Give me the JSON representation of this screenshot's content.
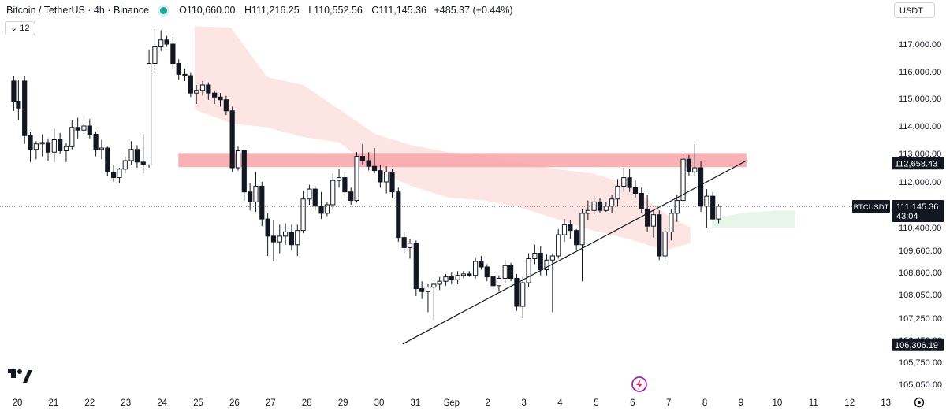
{
  "header": {
    "symbol": "Bitcoin / TetherUS · 4h · Binance",
    "open_label": "O",
    "open": "110,660.00",
    "high_label": "H",
    "high": "111,216.25",
    "low_label": "L",
    "low": "110,552.56",
    "close_label": "C",
    "close": "111,145.36",
    "change": "+485.37 (+0.44%)",
    "indicator_count": "12",
    "currency": "USDT"
  },
  "colors": {
    "up": "#131722",
    "down": "#131722",
    "resistance": "#f7a5a9",
    "cloud_bear": "#fde0de",
    "cloud_bull": "#e3f4e5",
    "axis_text": "#131722"
  },
  "chart_data": {
    "type": "candlestick",
    "symbol": "BTCUSDT",
    "interval": "4h",
    "y_axis": {
      "side": "right",
      "range": [
        104800,
        118000
      ],
      "ticks": [
        117000,
        116000,
        115000,
        114000,
        113000,
        112000,
        110400,
        109600,
        108800,
        108050,
        107250,
        106450,
        105750,
        105050
      ],
      "tick_labels": [
        "117,000.00",
        "116,000.00",
        "115,000.00",
        "114,000.00",
        "113,000.00",
        "112,000.00",
        "110,400.00",
        "109,600.00",
        "108,800.00",
        "108,050.00",
        "107,250.00",
        "106,450.00",
        "105,750.00",
        "105,050.00"
      ]
    },
    "x_axis": {
      "labels": [
        "20",
        "21",
        "22",
        "23",
        "24",
        "25",
        "26",
        "27",
        "28",
        "29",
        "30",
        "31",
        "Sep",
        "2",
        "3",
        "4",
        "5",
        "6",
        "7",
        "8",
        "9",
        "10",
        "11",
        "12",
        "13"
      ]
    },
    "price_labels": [
      {
        "text": "112,658.43",
        "value": 112658.43
      },
      {
        "text": "BTCUSDT",
        "value": 111145.36
      },
      {
        "text": "111,145.36",
        "value": 111145.36
      },
      {
        "text": "43:04",
        "value": 111145.36
      },
      {
        "text": "106,306.19",
        "value": 106306.19
      }
    ],
    "current_price": 111145.36,
    "resistance_zone": {
      "from_day": 24.45,
      "to_day": 40.15,
      "low": 112520,
      "high": 113020
    },
    "trendline": {
      "start": [
        30.65,
        106330
      ],
      "end": [
        40.15,
        112750
      ]
    },
    "ichimoku_cloud": {
      "bear": [
        [
          24.9,
          117650,
          114600
        ],
        [
          25.9,
          117600,
          114100
        ],
        [
          26.9,
          115800,
          113950
        ],
        [
          27.9,
          115500,
          113600
        ],
        [
          28.9,
          114600,
          113400
        ],
        [
          29.9,
          113700,
          112400
        ],
        [
          30.9,
          113300,
          111850
        ],
        [
          31.9,
          113050,
          111450
        ],
        [
          32.9,
          112950,
          111350
        ],
        [
          33.9,
          112700,
          111100
        ],
        [
          34.9,
          112450,
          110700
        ],
        [
          35.9,
          112300,
          110300
        ],
        [
          36.9,
          111900,
          110000
        ],
        [
          37.9,
          110900,
          109600
        ],
        [
          38.6,
          110400,
          109850
        ]
      ],
      "bull": [
        [
          39.2,
          110700,
          110400
        ],
        [
          40.0,
          110900,
          110400
        ],
        [
          41.0,
          111000,
          110400
        ],
        [
          41.5,
          111000,
          110400
        ]
      ]
    },
    "candles": [
      {
        "d": 19.9,
        "o": 115650,
        "h": 115850,
        "l": 114550,
        "c": 114900
      },
      {
        "d": 20.03,
        "o": 114900,
        "h": 115700,
        "l": 114200,
        "c": 114650
      },
      {
        "d": 20.2,
        "o": 115650,
        "h": 115850,
        "l": 113350,
        "c": 113650
      },
      {
        "d": 20.36,
        "o": 113650,
        "h": 113800,
        "l": 112700,
        "c": 113150
      },
      {
        "d": 20.52,
        "o": 113150,
        "h": 113450,
        "l": 112800,
        "c": 113350
      },
      {
        "d": 20.69,
        "o": 113350,
        "h": 113700,
        "l": 112900,
        "c": 113400
      },
      {
        "d": 20.85,
        "o": 113400,
        "h": 113550,
        "l": 112750,
        "c": 113050
      },
      {
        "d": 21.02,
        "o": 113050,
        "h": 113900,
        "l": 112700,
        "c": 113500
      },
      {
        "d": 21.18,
        "o": 113500,
        "h": 113750,
        "l": 113000,
        "c": 113100
      },
      {
        "d": 21.35,
        "o": 113100,
        "h": 113400,
        "l": 112700,
        "c": 113250
      },
      {
        "d": 21.51,
        "o": 113250,
        "h": 114200,
        "l": 113150,
        "c": 113950
      },
      {
        "d": 21.67,
        "o": 113950,
        "h": 114300,
        "l": 113550,
        "c": 113850
      },
      {
        "d": 21.84,
        "o": 113850,
        "h": 114450,
        "l": 113600,
        "c": 114000
      },
      {
        "d": 22.0,
        "o": 114000,
        "h": 114250,
        "l": 113550,
        "c": 113700
      },
      {
        "d": 22.17,
        "o": 113700,
        "h": 113800,
        "l": 112900,
        "c": 113150
      },
      {
        "d": 22.33,
        "o": 113150,
        "h": 113500,
        "l": 112800,
        "c": 113200
      },
      {
        "d": 22.49,
        "o": 113200,
        "h": 113250,
        "l": 112200,
        "c": 112350
      },
      {
        "d": 22.66,
        "o": 112350,
        "h": 112600,
        "l": 112000,
        "c": 112150
      },
      {
        "d": 22.82,
        "o": 112150,
        "h": 112500,
        "l": 111950,
        "c": 112450
      },
      {
        "d": 22.98,
        "o": 112450,
        "h": 112900,
        "l": 112300,
        "c": 112750
      },
      {
        "d": 23.15,
        "o": 112750,
        "h": 113450,
        "l": 112600,
        "c": 113150
      },
      {
        "d": 23.31,
        "o": 113150,
        "h": 113300,
        "l": 112500,
        "c": 112700
      },
      {
        "d": 23.48,
        "o": 112700,
        "h": 113700,
        "l": 112300,
        "c": 112600
      },
      {
        "d": 23.64,
        "o": 112600,
        "h": 116800,
        "l": 112500,
        "c": 116300
      },
      {
        "d": 23.8,
        "o": 116300,
        "h": 117600,
        "l": 116000,
        "c": 116900
      },
      {
        "d": 23.97,
        "o": 116900,
        "h": 117500,
        "l": 116750,
        "c": 117150
      },
      {
        "d": 24.13,
        "o": 117150,
        "h": 117300,
        "l": 116900,
        "c": 117000
      },
      {
        "d": 24.3,
        "o": 117000,
        "h": 117250,
        "l": 116100,
        "c": 116300
      },
      {
        "d": 24.46,
        "o": 116300,
        "h": 116450,
        "l": 115700,
        "c": 115900
      },
      {
        "d": 24.63,
        "o": 115900,
        "h": 116100,
        "l": 115650,
        "c": 115850
      },
      {
        "d": 24.79,
        "o": 115850,
        "h": 115950,
        "l": 115050,
        "c": 115200
      },
      {
        "d": 24.95,
        "o": 115200,
        "h": 115500,
        "l": 114800,
        "c": 115300
      },
      {
        "d": 25.12,
        "o": 115300,
        "h": 115650,
        "l": 115100,
        "c": 115500
      },
      {
        "d": 25.28,
        "o": 115500,
        "h": 115600,
        "l": 114950,
        "c": 115200
      },
      {
        "d": 25.45,
        "o": 115200,
        "h": 115300,
        "l": 114800,
        "c": 115050
      },
      {
        "d": 25.61,
        "o": 115050,
        "h": 115200,
        "l": 114700,
        "c": 114950
      },
      {
        "d": 25.77,
        "o": 114950,
        "h": 115100,
        "l": 114400,
        "c": 114550
      },
      {
        "d": 25.94,
        "o": 114550,
        "h": 114700,
        "l": 112350,
        "c": 112500
      },
      {
        "d": 26.1,
        "o": 112500,
        "h": 113250,
        "l": 112400,
        "c": 113100
      },
      {
        "d": 26.27,
        "o": 113100,
        "h": 113150,
        "l": 111350,
        "c": 111650
      },
      {
        "d": 26.43,
        "o": 111650,
        "h": 111950,
        "l": 111000,
        "c": 111300
      },
      {
        "d": 26.59,
        "o": 111300,
        "h": 112350,
        "l": 110950,
        "c": 111850
      },
      {
        "d": 26.76,
        "o": 111850,
        "h": 112000,
        "l": 110450,
        "c": 110700
      },
      {
        "d": 26.92,
        "o": 110700,
        "h": 110900,
        "l": 109400,
        "c": 110100
      },
      {
        "d": 27.08,
        "o": 110100,
        "h": 110650,
        "l": 109200,
        "c": 109900
      },
      {
        "d": 27.25,
        "o": 109900,
        "h": 110500,
        "l": 109500,
        "c": 110100
      },
      {
        "d": 27.41,
        "o": 110100,
        "h": 110550,
        "l": 109800,
        "c": 110250
      },
      {
        "d": 27.58,
        "o": 110250,
        "h": 110500,
        "l": 109600,
        "c": 109800
      },
      {
        "d": 27.74,
        "o": 109800,
        "h": 110500,
        "l": 109400,
        "c": 110300
      },
      {
        "d": 27.9,
        "o": 110300,
        "h": 111700,
        "l": 110200,
        "c": 111400
      },
      {
        "d": 28.07,
        "o": 111400,
        "h": 111900,
        "l": 111200,
        "c": 111750
      },
      {
        "d": 28.23,
        "o": 111750,
        "h": 111850,
        "l": 111000,
        "c": 111150
      },
      {
        "d": 28.4,
        "o": 111150,
        "h": 111650,
        "l": 110700,
        "c": 110900
      },
      {
        "d": 28.56,
        "o": 110900,
        "h": 111300,
        "l": 110800,
        "c": 111200
      },
      {
        "d": 28.72,
        "o": 111200,
        "h": 112300,
        "l": 111050,
        "c": 112050
      },
      {
        "d": 28.89,
        "o": 112050,
        "h": 112450,
        "l": 111800,
        "c": 112150
      },
      {
        "d": 29.05,
        "o": 112150,
        "h": 112350,
        "l": 111500,
        "c": 111650
      },
      {
        "d": 29.22,
        "o": 111650,
        "h": 111800,
        "l": 111200,
        "c": 111350
      },
      {
        "d": 29.38,
        "o": 111350,
        "h": 113050,
        "l": 111300,
        "c": 112900
      },
      {
        "d": 29.54,
        "o": 112900,
        "h": 113350,
        "l": 112600,
        "c": 112750
      },
      {
        "d": 29.71,
        "o": 112750,
        "h": 113050,
        "l": 112400,
        "c": 112550
      },
      {
        "d": 29.87,
        "o": 112550,
        "h": 113200,
        "l": 112300,
        "c": 112400
      },
      {
        "d": 30.03,
        "o": 112400,
        "h": 112600,
        "l": 111800,
        "c": 112000
      },
      {
        "d": 30.2,
        "o": 112000,
        "h": 112550,
        "l": 111600,
        "c": 112350
      },
      {
        "d": 30.36,
        "o": 112350,
        "h": 112450,
        "l": 111450,
        "c": 111650
      },
      {
        "d": 30.53,
        "o": 111650,
        "h": 111800,
        "l": 109900,
        "c": 110050
      },
      {
        "d": 30.69,
        "o": 110050,
        "h": 110250,
        "l": 109500,
        "c": 109700
      },
      {
        "d": 30.85,
        "o": 109700,
        "h": 110000,
        "l": 109300,
        "c": 109850
      },
      {
        "d": 31.02,
        "o": 109850,
        "h": 109950,
        "l": 108000,
        "c": 108250
      },
      {
        "d": 31.18,
        "o": 108250,
        "h": 108500,
        "l": 107900,
        "c": 108150
      },
      {
        "d": 31.35,
        "o": 108150,
        "h": 108400,
        "l": 107450,
        "c": 108300
      },
      {
        "d": 31.51,
        "o": 108300,
        "h": 108450,
        "l": 107200,
        "c": 108400
      },
      {
        "d": 31.67,
        "o": 108400,
        "h": 108650,
        "l": 108200,
        "c": 108500
      },
      {
        "d": 31.84,
        "o": 108500,
        "h": 108750,
        "l": 108350,
        "c": 108650
      },
      {
        "d": 32.0,
        "o": 108650,
        "h": 108800,
        "l": 108400,
        "c": 108550
      },
      {
        "d": 32.17,
        "o": 108550,
        "h": 108850,
        "l": 108400,
        "c": 108700
      },
      {
        "d": 32.33,
        "o": 108700,
        "h": 108850,
        "l": 108600,
        "c": 108750
      },
      {
        "d": 32.49,
        "o": 108750,
        "h": 108850,
        "l": 108650,
        "c": 108700
      },
      {
        "d": 32.66,
        "o": 108700,
        "h": 109350,
        "l": 108600,
        "c": 109200
      },
      {
        "d": 32.82,
        "o": 109200,
        "h": 109400,
        "l": 108900,
        "c": 109000
      },
      {
        "d": 32.98,
        "o": 109000,
        "h": 109100,
        "l": 108500,
        "c": 108650
      },
      {
        "d": 33.15,
        "o": 108650,
        "h": 108700,
        "l": 108250,
        "c": 108350
      },
      {
        "d": 33.31,
        "o": 108350,
        "h": 108700,
        "l": 108150,
        "c": 108600
      },
      {
        "d": 33.48,
        "o": 108600,
        "h": 109250,
        "l": 108450,
        "c": 109050
      },
      {
        "d": 33.64,
        "o": 109050,
        "h": 109150,
        "l": 108500,
        "c": 108600
      },
      {
        "d": 33.8,
        "o": 108600,
        "h": 108750,
        "l": 107500,
        "c": 107650
      },
      {
        "d": 33.97,
        "o": 107650,
        "h": 108650,
        "l": 107250,
        "c": 108450
      },
      {
        "d": 34.13,
        "o": 108450,
        "h": 109500,
        "l": 108300,
        "c": 109300
      },
      {
        "d": 34.3,
        "o": 109300,
        "h": 109800,
        "l": 109100,
        "c": 109500
      },
      {
        "d": 34.46,
        "o": 109500,
        "h": 109750,
        "l": 108700,
        "c": 108900
      },
      {
        "d": 34.63,
        "o": 108900,
        "h": 109450,
        "l": 108700,
        "c": 109250
      },
      {
        "d": 34.79,
        "o": 109250,
        "h": 109500,
        "l": 107450,
        "c": 109400
      },
      {
        "d": 34.95,
        "o": 109400,
        "h": 110350,
        "l": 109300,
        "c": 110150
      },
      {
        "d": 35.12,
        "o": 110150,
        "h": 110700,
        "l": 109900,
        "c": 110500
      },
      {
        "d": 35.28,
        "o": 110500,
        "h": 110650,
        "l": 110000,
        "c": 110300
      },
      {
        "d": 35.45,
        "o": 110300,
        "h": 110350,
        "l": 109600,
        "c": 109800
      },
      {
        "d": 35.61,
        "o": 109800,
        "h": 111050,
        "l": 108500,
        "c": 110900
      },
      {
        "d": 35.77,
        "o": 110900,
        "h": 111350,
        "l": 110650,
        "c": 111000
      },
      {
        "d": 35.94,
        "o": 111000,
        "h": 111500,
        "l": 110850,
        "c": 111300
      },
      {
        "d": 36.1,
        "o": 111300,
        "h": 111450,
        "l": 110900,
        "c": 111000
      },
      {
        "d": 36.27,
        "o": 111000,
        "h": 111300,
        "l": 110950,
        "c": 111150
      },
      {
        "d": 36.43,
        "o": 111150,
        "h": 111550,
        "l": 110900,
        "c": 111400
      },
      {
        "d": 36.59,
        "o": 111400,
        "h": 112100,
        "l": 111150,
        "c": 111850
      },
      {
        "d": 36.76,
        "o": 111850,
        "h": 112500,
        "l": 111650,
        "c": 112150
      },
      {
        "d": 36.92,
        "o": 112150,
        "h": 112450,
        "l": 111650,
        "c": 111800
      },
      {
        "d": 37.08,
        "o": 111800,
        "h": 112050,
        "l": 111450,
        "c": 111600
      },
      {
        "d": 37.25,
        "o": 111600,
        "h": 111800,
        "l": 110900,
        "c": 111050
      },
      {
        "d": 37.41,
        "o": 111050,
        "h": 111550,
        "l": 110250,
        "c": 110450
      },
      {
        "d": 37.58,
        "o": 110450,
        "h": 111000,
        "l": 110050,
        "c": 110850
      },
      {
        "d": 37.74,
        "o": 110850,
        "h": 111000,
        "l": 109250,
        "c": 109400
      },
      {
        "d": 37.9,
        "o": 109400,
        "h": 110350,
        "l": 109200,
        "c": 110250
      },
      {
        "d": 38.07,
        "o": 110250,
        "h": 111050,
        "l": 109950,
        "c": 110900
      },
      {
        "d": 38.23,
        "o": 110900,
        "h": 111550,
        "l": 110600,
        "c": 111350
      },
      {
        "d": 38.4,
        "o": 111350,
        "h": 112900,
        "l": 111150,
        "c": 112800
      },
      {
        "d": 38.56,
        "o": 112800,
        "h": 112950,
        "l": 112200,
        "c": 112350
      },
      {
        "d": 38.72,
        "o": 112350,
        "h": 113350,
        "l": 112200,
        "c": 112500
      },
      {
        "d": 38.89,
        "o": 112500,
        "h": 112750,
        "l": 110950,
        "c": 111150
      },
      {
        "d": 39.05,
        "o": 111150,
        "h": 111750,
        "l": 110400,
        "c": 111500
      },
      {
        "d": 39.22,
        "o": 111500,
        "h": 111650,
        "l": 110650,
        "c": 110700
      },
      {
        "d": 39.38,
        "o": 110700,
        "h": 111220,
        "l": 110550,
        "c": 111145
      }
    ]
  }
}
